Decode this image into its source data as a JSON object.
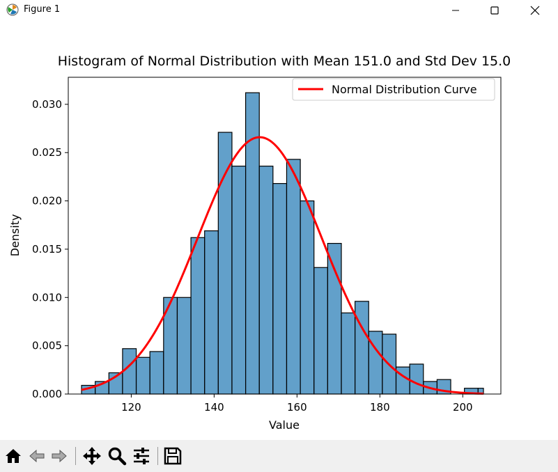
{
  "window": {
    "title": "Figure 1",
    "icon": "matplotlib-icon",
    "controls": [
      "minimize-icon",
      "maximize-icon",
      "close-icon"
    ]
  },
  "toolbar": {
    "buttons": [
      "home-icon",
      "back-arrow-icon",
      "forward-arrow-icon",
      "pan-icon",
      "zoom-icon",
      "configure-subplots-icon",
      "save-icon"
    ]
  },
  "chart_data": {
    "type": "bar",
    "title": "Histogram of Normal Distribution with Mean 151.0 and Std Dev 15.0",
    "xlabel": "Value",
    "ylabel": "Density",
    "xlim": [
      104.8,
      209.2
    ],
    "ylim": [
      0,
      0.0328
    ],
    "xticks": [
      120,
      140,
      160,
      180,
      200
    ],
    "xtick_labels": [
      "120",
      "140",
      "160",
      "180",
      "200"
    ],
    "yticks": [
      0,
      0.005,
      0.01,
      0.015,
      0.02,
      0.025,
      0.03
    ],
    "ytick_labels": [
      "0.000",
      "0.005",
      "0.010",
      "0.015",
      "0.020",
      "0.025",
      "0.030"
    ],
    "bin_edges": [
      108.0,
      111.3,
      114.6,
      117.9,
      121.2,
      124.5,
      127.8,
      131.1,
      134.4,
      137.7,
      141.0,
      144.3,
      147.6,
      150.9,
      154.2,
      157.5,
      160.8,
      164.1,
      167.4,
      170.7,
      174.0,
      177.3,
      180.6,
      183.9,
      187.2,
      190.5,
      193.8,
      197.1,
      200.4,
      203.7,
      205.0
    ],
    "values": [
      0.0009,
      0.0013,
      0.0022,
      0.0047,
      0.0038,
      0.0044,
      0.01,
      0.01,
      0.0162,
      0.0169,
      0.0271,
      0.0236,
      0.0312,
      0.0236,
      0.0218,
      0.0243,
      0.02,
      0.0131,
      0.0156,
      0.0084,
      0.0096,
      0.0065,
      0.0062,
      0.0028,
      0.0031,
      0.0013,
      0.0015,
      0.0,
      0.0006,
      0.0006
    ],
    "bar_color": "#1f77b4",
    "bar_edge_color": "#000000",
    "curve": {
      "name": "Normal Distribution Curve",
      "color": "#ff0000",
      "mean": 151.0,
      "std": 15.0,
      "x_range": [
        108.0,
        205.0
      ]
    },
    "legend_position": "upper right",
    "grid": false
  }
}
